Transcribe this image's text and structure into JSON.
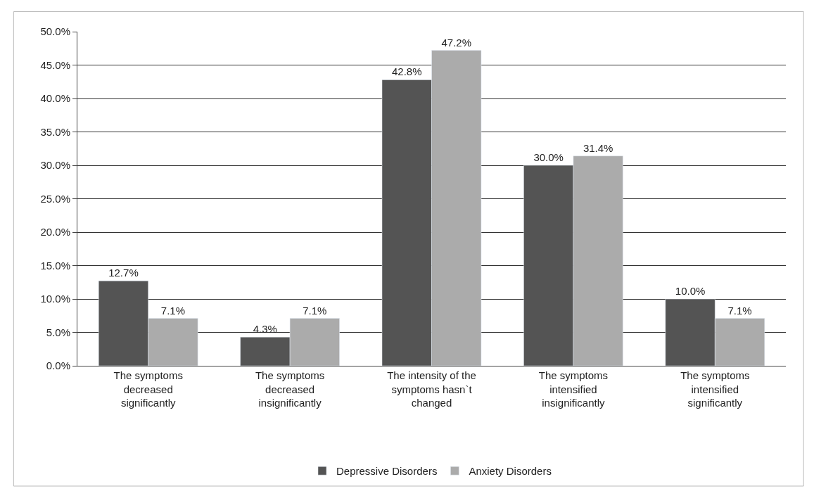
{
  "chart_data": {
    "type": "bar",
    "categories": [
      "The symptoms decreased significantly",
      "The symptoms decreased insignificantly",
      "The intensity of the symptoms hasn`t changed",
      "The symptoms intensified insignificantly",
      "The symptoms intensified significantly"
    ],
    "series": [
      {
        "name": "Depressive Disorders",
        "color": "#545454",
        "values": [
          12.7,
          4.3,
          42.8,
          30.0,
          10.0
        ],
        "value_labels": [
          "12.7%",
          "4.3%",
          "42.8%",
          "30.0%",
          "10.0%"
        ]
      },
      {
        "name": "Anxiety Disorders",
        "color": "#ababab",
        "values": [
          7.1,
          7.1,
          47.2,
          31.4,
          7.1
        ],
        "value_labels": [
          "7.1%",
          "7.1%",
          "47.2%",
          "31.4%",
          "7.1%"
        ]
      }
    ],
    "ylim": [
      0,
      50
    ],
    "yticks": [
      {
        "value": 0,
        "label": "0.0%"
      },
      {
        "value": 5,
        "label": "5.0%"
      },
      {
        "value": 10,
        "label": "10.0%"
      },
      {
        "value": 15,
        "label": "15.0%"
      },
      {
        "value": 20,
        "label": "20.0%"
      },
      {
        "value": 25,
        "label": "25.0%"
      },
      {
        "value": 30,
        "label": "30.0%"
      },
      {
        "value": 35,
        "label": "35.0%"
      },
      {
        "value": 40,
        "label": "40.0%"
      },
      {
        "value": 45,
        "label": "45.0%"
      },
      {
        "value": 50,
        "label": "50.0%"
      }
    ],
    "grid": "y",
    "legend": "bottom"
  }
}
